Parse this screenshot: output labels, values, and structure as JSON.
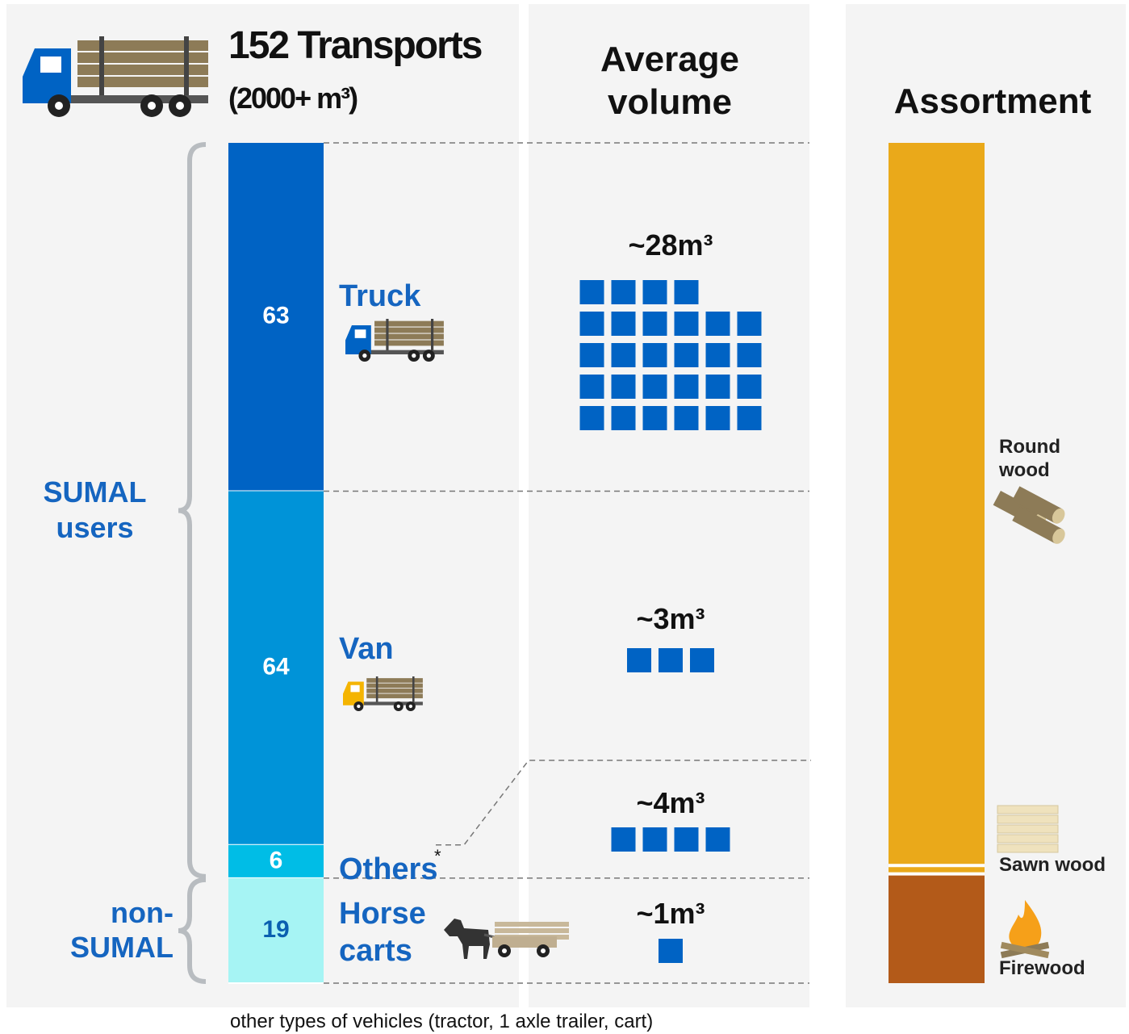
{
  "chart_data": [
    {
      "type": "stacked-bar",
      "title": "152 Transports",
      "subtitle": "(2000+ m³)",
      "categories": [
        "Truck",
        "Van",
        "Others",
        "Horse carts"
      ],
      "values": [
        63,
        64,
        6,
        19
      ],
      "colors": [
        "#0063c4",
        "#0093d8",
        "#00bde6",
        "#a6f4f4"
      ],
      "marker": "*",
      "groups": [
        {
          "label": "SUMAL users",
          "members": [
            0,
            1,
            2
          ]
        },
        {
          "label": "non-SUMAL",
          "members": [
            3
          ]
        }
      ]
    },
    {
      "type": "pictogram",
      "title": "Average volume",
      "values": [
        28,
        3,
        4,
        1
      ],
      "value_labels": [
        "~28m³",
        "~3m³",
        "~4m³",
        "~1m³"
      ],
      "color": "#0063c4"
    },
    {
      "type": "stacked-bar",
      "title": "Assortment",
      "categories": [
        "Round wood",
        "Sawn wood",
        "Firewood"
      ],
      "values": [
        86,
        1,
        13
      ],
      "colors": [
        "#eaa91a",
        "#eaa91a",
        "#b35a19"
      ]
    }
  ],
  "footnote": {
    "marker": "*",
    "text": "other types of vehicles (tractor, 1 axle trailer, cart)"
  }
}
